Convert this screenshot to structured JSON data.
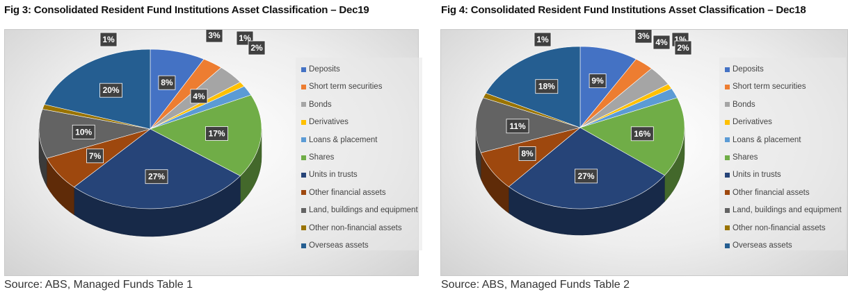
{
  "chart_data": [
    {
      "type": "pie",
      "title": "Fig 3: Consolidated Resident Fund Institutions Asset Classification – Dec19",
      "source": "Source: ABS, Managed Funds Table 1",
      "legend_position": "right",
      "categories": [
        "Deposits",
        "Short term securities",
        "Bonds",
        "Derivatives",
        "Loans & placement",
        "Shares",
        "Units in trusts",
        "Other financial assets",
        "Land, buildings and equipment",
        "Other non-financial assets",
        "Overseas assets"
      ],
      "values": [
        8,
        3,
        4,
        1,
        2,
        17,
        27,
        7,
        10,
        1,
        20
      ],
      "labels": [
        "8%",
        "3%",
        "4%",
        "1%",
        "2%",
        "17%",
        "27%",
        "7%",
        "10%",
        "1%",
        "20%"
      ],
      "colors": [
        "#4472c4",
        "#ed7d31",
        "#a5a5a5",
        "#ffc000",
        "#5b9bd5",
        "#70ad47",
        "#264478",
        "#9e480e",
        "#636363",
        "#997300",
        "#255e91"
      ]
    },
    {
      "type": "pie",
      "title": "Fig 4: Consolidated Resident Fund Institutions Asset Classification – Dec18",
      "source": "Source: ABS, Managed Funds Table 2",
      "legend_position": "right",
      "categories": [
        "Deposits",
        "Short term securities",
        "Bonds",
        "Derivatives",
        "Loans & placement",
        "Shares",
        "Units in trusts",
        "Other financial assets",
        "Land, buildings and equipment",
        "Other non-financial assets",
        "Overseas assets"
      ],
      "values": [
        9,
        3,
        4,
        1,
        2,
        16,
        27,
        8,
        11,
        1,
        18
      ],
      "labels": [
        "9%",
        "3%",
        "4%",
        "1%",
        "2%",
        "16%",
        "27%",
        "8%",
        "11%",
        "1%",
        "18%"
      ],
      "colors": [
        "#4472c4",
        "#ed7d31",
        "#a5a5a5",
        "#ffc000",
        "#5b9bd5",
        "#70ad47",
        "#264478",
        "#9e480e",
        "#636363",
        "#997300",
        "#255e91"
      ]
    }
  ]
}
